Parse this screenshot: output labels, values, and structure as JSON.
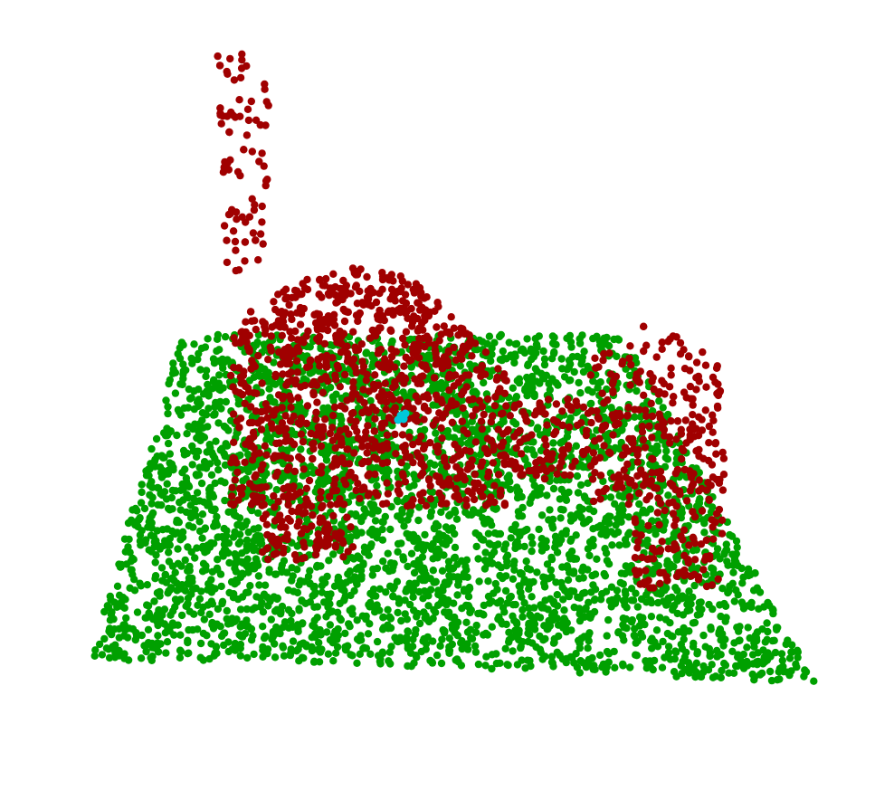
{
  "scene": {
    "type": "point-cloud-segmentation",
    "background": "#ffffff",
    "classes": [
      {
        "key": "ground",
        "color": "#00a000"
      },
      {
        "key": "object",
        "color": "#a00000"
      },
      {
        "key": "marker",
        "color": "#00c8d8"
      }
    ]
  }
}
